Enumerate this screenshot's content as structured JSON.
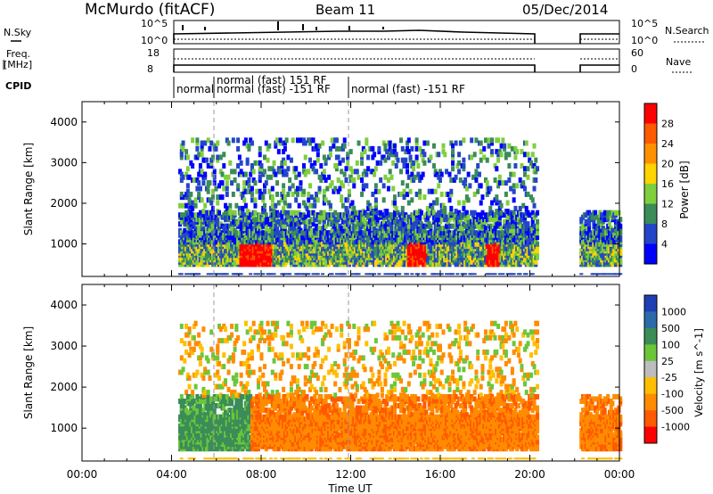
{
  "header": {
    "station": "McMurdo (fitACF)",
    "beam": "Beam 11",
    "date": "05/Dec/2014"
  },
  "top_panels": {
    "nsky_label": "N.Sky",
    "nsky_ticks": [
      "10^5",
      "10^0"
    ],
    "nsearch_label": "N.Search",
    "nsearch_ticks": [
      "10^5",
      "10^0"
    ],
    "freq_label_1": "Freq.",
    "freq_label_2": "[MHz]",
    "freq_ticks": [
      "18",
      "8"
    ],
    "nave_label": "Nave",
    "nave_ticks": [
      "60",
      "0"
    ],
    "cpid_label": "CPID",
    "cpid_segments": [
      {
        "label": "normal",
        "start_hour": 4.3
      },
      {
        "label": "normal (fast) 151 RF",
        "start_hour": 6.0
      },
      {
        "label": "normal (fast) -151 RF",
        "start_hour": 6.0
      },
      {
        "label": "normal (fast) -151 RF",
        "start_hour": 12.0
      }
    ]
  },
  "chart_data": [
    {
      "type": "heatmap",
      "title": "Power",
      "ylabel": "Slant Range [km]",
      "xlabel": "Time UT",
      "x_ticks": [
        "00:00",
        "04:00",
        "08:00",
        "12:00",
        "16:00",
        "20:00",
        "00:00"
      ],
      "x_range_hours": [
        0,
        24
      ],
      "ylim": [
        200,
        4500
      ],
      "y_ticks": [
        1000,
        2000,
        3000,
        4000
      ],
      "colorbar_label": "Power [dB]",
      "colorbar_ticks": [
        "28",
        "24",
        "20",
        "16",
        "12",
        "8",
        "4"
      ],
      "colorbar_colors": [
        "#ff0000",
        "#ff5a00",
        "#ff9100",
        "#ffd400",
        "#7fcf3c",
        "#3a8c58",
        "#2346c8",
        "#0000ff"
      ],
      "data_gaps_hours": [
        [
          0,
          4.3
        ],
        [
          20.3,
          22.2
        ]
      ]
    },
    {
      "type": "heatmap",
      "title": "Velocity",
      "ylabel": "Slant Range [km]",
      "xlabel": "Time UT",
      "x_ticks": [
        "00:00",
        "04:00",
        "08:00",
        "12:00",
        "16:00",
        "20:00",
        "00:00"
      ],
      "x_range_hours": [
        0,
        24
      ],
      "ylim": [
        200,
        4500
      ],
      "y_ticks": [
        1000,
        2000,
        3000,
        4000
      ],
      "colorbar_label": "Velocity [m s^-1]",
      "colorbar_ticks": [
        "1000",
        "500",
        "100",
        "25",
        "-25",
        "-100",
        "-500",
        "-1000"
      ],
      "colorbar_colors": [
        "#1e3fb4",
        "#2d6ba8",
        "#3a8c58",
        "#6cc63a",
        "#bdbdbd",
        "#ffbf00",
        "#ff8c00",
        "#ff5a00",
        "#ff0000"
      ],
      "data_gaps_hours": [
        [
          0,
          4.3
        ],
        [
          20.3,
          22.2
        ]
      ]
    }
  ]
}
